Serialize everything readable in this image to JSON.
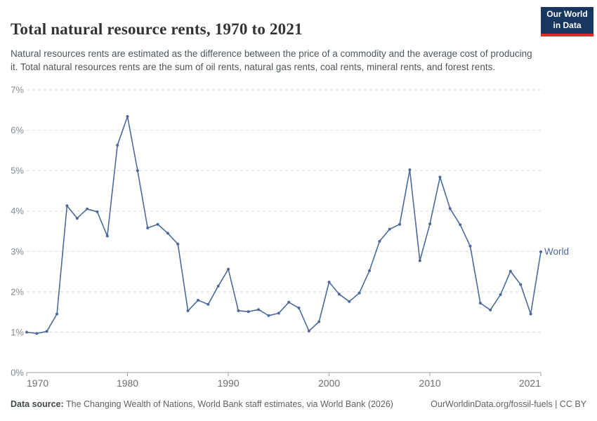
{
  "header": {
    "title": "Total natural resource rents, 1970 to 2021",
    "logo": {
      "line1": "Our World",
      "line2": "in Data"
    }
  },
  "subtitle": "Natural resources rents are estimated as the difference between the price of a commodity and the average cost of producing it. Total natural resources rents are the sum of oil rents, natural gas rents, coal rents, mineral rents, and forest rents.",
  "chart_data": {
    "type": "line",
    "title": "Total natural resource rents, 1970 to 2021",
    "xlabel": "",
    "ylabel": "",
    "xlim": [
      1970,
      2021
    ],
    "ylim": [
      0,
      7
    ],
    "grid": "horizontal-dashed",
    "legend_position": "end-of-line",
    "line_color": "#4C6A9C",
    "y_ticks": [
      "0%",
      "1%",
      "2%",
      "3%",
      "4%",
      "5%",
      "6%",
      "7%"
    ],
    "x_ticks": [
      "1970",
      "1980",
      "1990",
      "2000",
      "2010",
      "2021"
    ],
    "x_tick_years": [
      1970,
      1980,
      1990,
      2000,
      2010,
      2021
    ],
    "series": [
      {
        "name": "World",
        "x": [
          1970,
          1971,
          1972,
          1973,
          1974,
          1975,
          1976,
          1977,
          1978,
          1979,
          1980,
          1981,
          1982,
          1983,
          1984,
          1985,
          1986,
          1987,
          1988,
          1989,
          1990,
          1991,
          1992,
          1993,
          1994,
          1995,
          1996,
          1997,
          1998,
          1999,
          2000,
          2001,
          2002,
          2003,
          2004,
          2005,
          2006,
          2007,
          2008,
          2009,
          2010,
          2011,
          2012,
          2013,
          2014,
          2015,
          2016,
          2017,
          2018,
          2019,
          2020,
          2021
        ],
        "values": [
          1.0,
          0.97,
          1.02,
          1.45,
          4.13,
          3.82,
          4.05,
          3.98,
          3.38,
          5.63,
          6.34,
          5.0,
          3.58,
          3.67,
          3.45,
          3.18,
          1.53,
          1.79,
          1.69,
          2.14,
          2.56,
          1.53,
          1.51,
          1.56,
          1.41,
          1.47,
          1.74,
          1.6,
          1.03,
          1.26,
          2.24,
          1.94,
          1.76,
          1.97,
          2.52,
          3.25,
          3.55,
          3.67,
          5.02,
          2.77,
          3.68,
          4.84,
          4.06,
          3.66,
          3.13,
          1.72,
          1.55,
          1.93,
          2.51,
          2.18,
          1.45,
          2.99
        ]
      }
    ],
    "end_label": "World"
  },
  "footer": {
    "source_label": "Data source:",
    "source_text": " The Changing Wealth of Nations, World Bank staff estimates, via World Bank (2026)",
    "link_text": "OurWorldinData.org/fossil-fuels | CC BY"
  }
}
